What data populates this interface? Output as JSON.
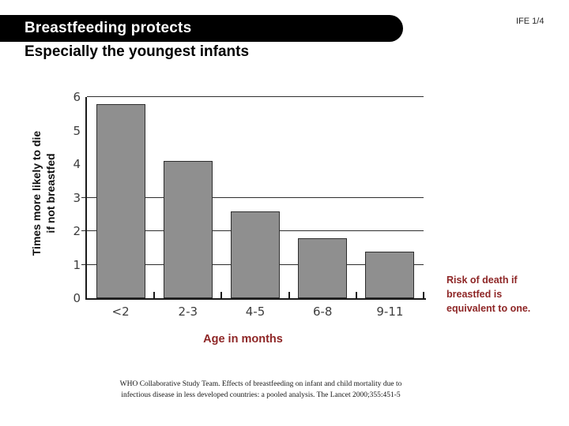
{
  "slide": {
    "code": "IFE 1/4",
    "title": "Breastfeeding protects",
    "subtitle": "Especially the youngest infants",
    "annotation": "Risk of death if breastfed is equivalent to one.",
    "citation": {
      "line1": "WHO Collaborative Study Team. Effects of breastfeeding on infant and child mortality due to",
      "line2": "infectious disease in less developed countries: a pooled analysis. The Lancet 2000;355:451-5"
    }
  },
  "chart_data": {
    "type": "bar",
    "title": "",
    "categories": [
      "<2",
      "2-3",
      "4-5",
      "6-8",
      "9-11"
    ],
    "values": [
      5.8,
      4.1,
      2.6,
      1.8,
      1.4
    ],
    "xlabel": "Age in months",
    "ylabel": [
      "Times more likely to die",
      "if not breastfed"
    ],
    "ylim": [
      0,
      6
    ],
    "yticks": [
      0,
      1,
      2,
      3,
      4,
      5,
      6
    ],
    "gridline_values": [
      1,
      2,
      3,
      6
    ],
    "left_tick_values": [
      1,
      2,
      3
    ],
    "grid": "horizontal lines at 1, 2, 3 and top border at 6 only",
    "legend": "none",
    "bar_color": "#8f8f8f",
    "bar_border_color": "#2e2e2e",
    "annotation": "Risk of death if breastfed is equivalent to one."
  },
  "colors": {
    "banner_bg": "#000000",
    "banner_text": "#ffffff",
    "accent_red": "#8e2626",
    "axis": "#1a1a1a",
    "tick_label": "#3d3d3d"
  }
}
